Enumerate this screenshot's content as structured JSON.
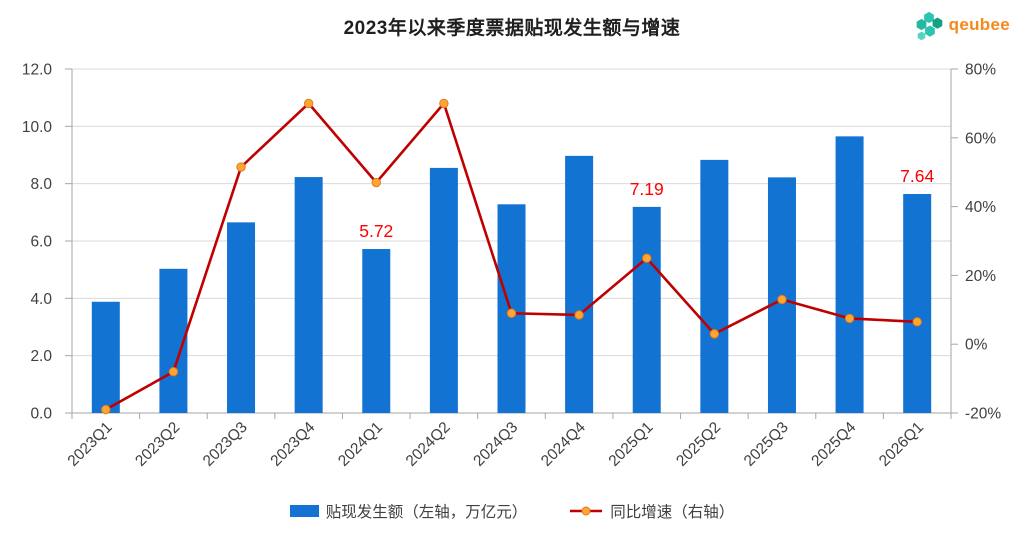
{
  "title": "2023年以来季度票据贴现发生额与增速",
  "logo": {
    "text": "qeubee",
    "text_color": "#F5891D",
    "hex_colors": [
      "#2BC4B2",
      "#14A085",
      "#24B8A2",
      "#2BC4B2",
      "#55D4C4"
    ]
  },
  "colors": {
    "bar": "#1273D2",
    "line": "#C00000",
    "marker_fill": "#FFA534",
    "marker_stroke": "#DF7C17",
    "data_label": "#FF0000",
    "grid": "#D9D9D9",
    "axis": "#A6A6A6",
    "tick_text": "#404040"
  },
  "legend": {
    "bar_label": "贴现发生额（左轴，万亿元）",
    "line_label": "同比增速（右轴）"
  },
  "chart_data": {
    "type": "bar",
    "combo": "bar+line",
    "title": "2023年以来季度票据贴现发生额与增速",
    "categories": [
      "2023Q1",
      "2023Q2",
      "2023Q3",
      "2023Q4",
      "2024Q1",
      "2024Q2",
      "2024Q3",
      "2024Q4",
      "2025Q1",
      "2025Q2",
      "2025Q3",
      "2025Q4",
      "2026Q1"
    ],
    "series": [
      {
        "name": "贴现发生额（左轴，万亿元）",
        "type": "bar",
        "axis": "left",
        "values": [
          3.88,
          5.03,
          6.65,
          8.23,
          5.72,
          8.55,
          7.28,
          8.97,
          7.19,
          8.83,
          8.22,
          9.65,
          7.64
        ]
      },
      {
        "name": "同比增速（右轴）",
        "type": "line",
        "axis": "right",
        "unit": "%",
        "values": [
          -19,
          -8,
          51.5,
          70,
          47,
          70,
          9,
          8.5,
          25,
          3,
          13,
          7.5,
          6.5
        ]
      }
    ],
    "data_labels": [
      {
        "index": 4,
        "text": "5.72"
      },
      {
        "index": 8,
        "text": "7.19"
      },
      {
        "index": 12,
        "text": "7.64"
      }
    ],
    "left_axis": {
      "min": 0,
      "max": 12,
      "step": 2,
      "tick_labels": [
        "0.0",
        "2.0",
        "4.0",
        "6.0",
        "8.0",
        "10.0",
        "12.0"
      ]
    },
    "right_axis": {
      "min": -20,
      "max": 80,
      "step": 20,
      "tick_labels": [
        "-20%",
        "0%",
        "20%",
        "40%",
        "60%",
        "80%"
      ]
    },
    "grid": true,
    "legend_position": "bottom"
  }
}
